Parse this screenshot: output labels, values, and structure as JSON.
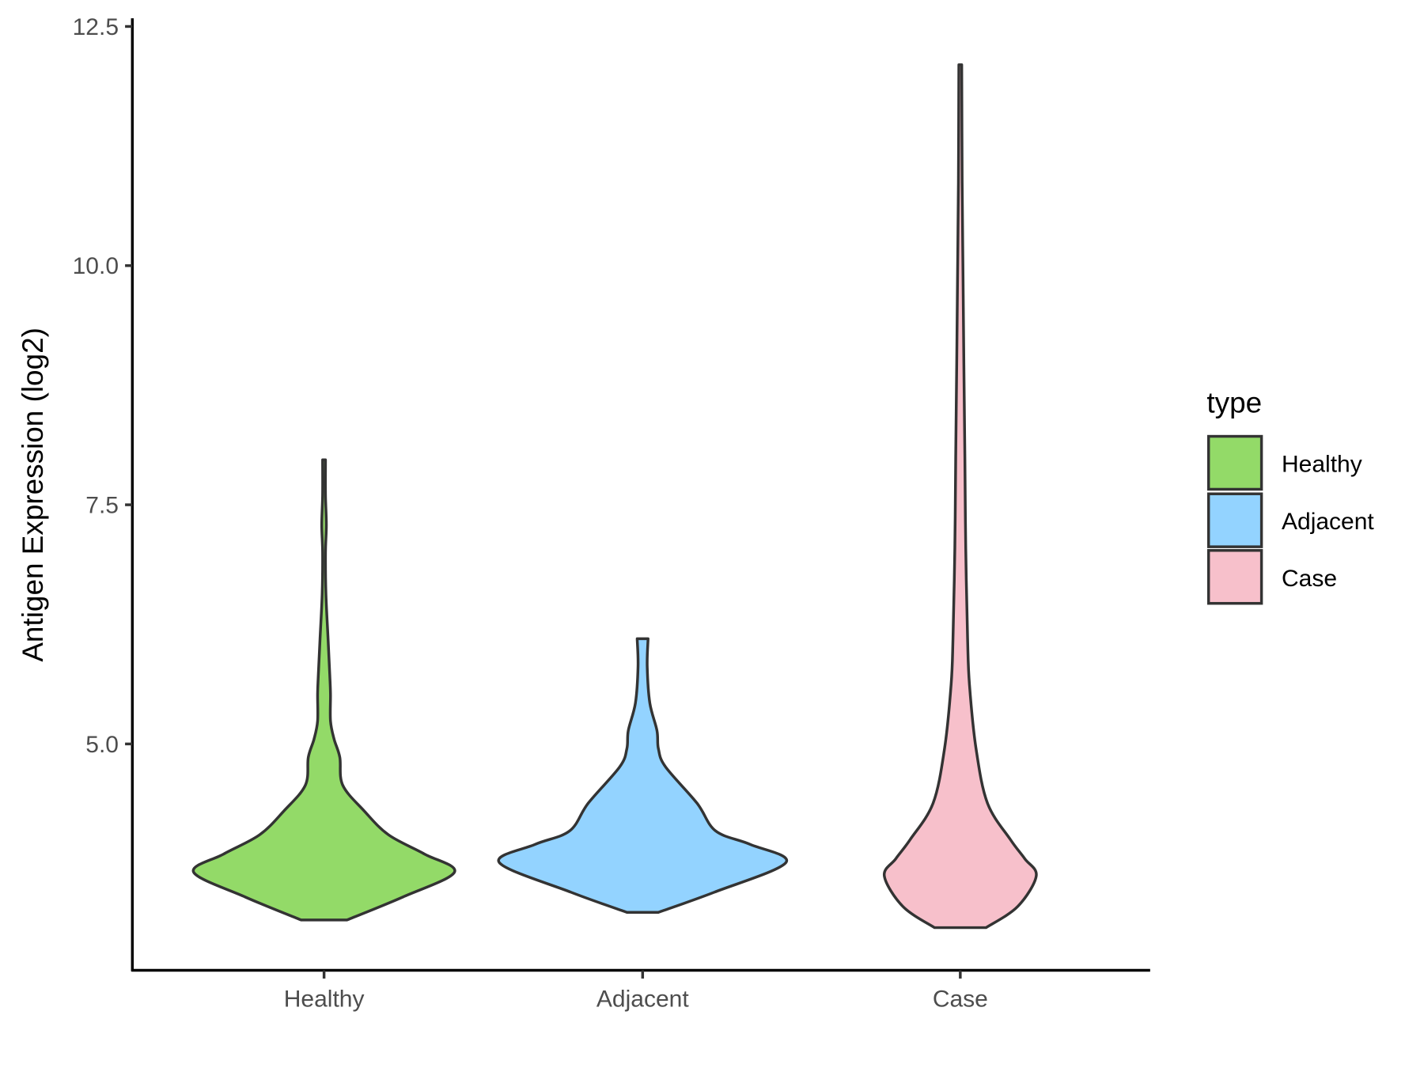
{
  "chart_data": {
    "type": "violin",
    "title": "",
    "xlabel": "",
    "ylabel": "Antigen Expression (log2)",
    "ylim": [
      2.63,
      12.6
    ],
    "yticks": [
      5.0,
      7.5,
      10.0,
      12.5
    ],
    "ytick_labels": [
      "5.0",
      "7.5",
      "10.0",
      "12.5"
    ],
    "grid": false,
    "categories": [
      "Healthy",
      "Adjacent",
      "Case"
    ],
    "legend": {
      "title": "type",
      "placement": "right",
      "entries": [
        "Healthy",
        "Adjacent",
        "Case"
      ]
    },
    "series": [
      {
        "name": "Healthy",
        "color": "#93DA68",
        "min": 3.16,
        "max": 7.97,
        "density_profile": [
          [
            3.16,
            0.16
          ],
          [
            3.4,
            0.55
          ],
          [
            3.66,
            0.91
          ],
          [
            3.85,
            0.7
          ],
          [
            4.05,
            0.45
          ],
          [
            4.3,
            0.28
          ],
          [
            4.57,
            0.13
          ],
          [
            4.86,
            0.11
          ],
          [
            5.05,
            0.07
          ],
          [
            5.24,
            0.045
          ],
          [
            5.52,
            0.045
          ],
          [
            5.72,
            0.04
          ],
          [
            6.1,
            0.028
          ],
          [
            6.57,
            0.013
          ],
          [
            7.0,
            0.01
          ],
          [
            7.29,
            0.016
          ],
          [
            7.6,
            0.01
          ],
          [
            7.97,
            0.01
          ]
        ]
      },
      {
        "name": "Adjacent",
        "color": "#93D3FF",
        "min": 3.24,
        "max": 6.1,
        "density_profile": [
          [
            3.24,
            0.11
          ],
          [
            3.45,
            0.5
          ],
          [
            3.76,
            1.0
          ],
          [
            3.95,
            0.75
          ],
          [
            4.09,
            0.51
          ],
          [
            4.38,
            0.38
          ],
          [
            4.76,
            0.16
          ],
          [
            4.95,
            0.11
          ],
          [
            5.14,
            0.1
          ],
          [
            5.43,
            0.05
          ],
          [
            5.81,
            0.032
          ],
          [
            6.1,
            0.038
          ]
        ]
      },
      {
        "name": "Case",
        "color": "#F7C0CB",
        "min": 3.08,
        "max": 12.1,
        "density_profile": [
          [
            3.08,
            0.18
          ],
          [
            3.3,
            0.4
          ],
          [
            3.62,
            0.53
          ],
          [
            3.8,
            0.45
          ],
          [
            4.0,
            0.35
          ],
          [
            4.38,
            0.19
          ],
          [
            4.95,
            0.11
          ],
          [
            5.62,
            0.064
          ],
          [
            6.1,
            0.051
          ],
          [
            7.05,
            0.038
          ],
          [
            8.0,
            0.032
          ],
          [
            8.96,
            0.025
          ],
          [
            9.91,
            0.019
          ],
          [
            10.87,
            0.013
          ],
          [
            12.1,
            0.01
          ]
        ]
      }
    ]
  }
}
